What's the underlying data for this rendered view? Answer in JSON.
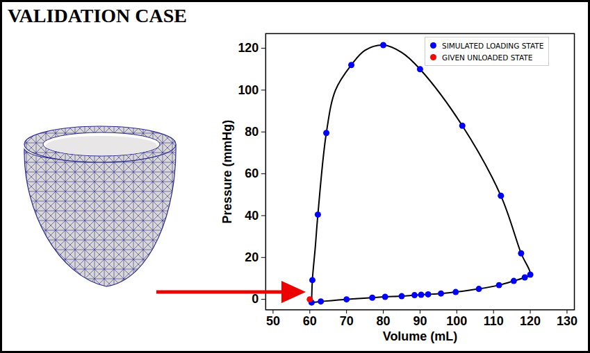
{
  "chart_data": {
    "type": "line",
    "title": "VALIDATION CASE",
    "x_label": "Volume (mL)",
    "y_label": "Pressure (mmHg)",
    "xlim": [
      48,
      132
    ],
    "ylim": [
      -5,
      127
    ],
    "xticks": [
      50,
      60,
      70,
      80,
      90,
      100,
      110,
      120,
      130
    ],
    "yticks": [
      0,
      20,
      40,
      60,
      80,
      100,
      120
    ],
    "grid": false,
    "legend": "upper right",
    "series": [
      {
        "type": "line",
        "color": "#000000",
        "line_style": "solid",
        "x": [
          60.5,
          63,
          70,
          77,
          80.5,
          85,
          88.5,
          90.3,
          92.2,
          95.7,
          99.7,
          106,
          111.5,
          115.5,
          118.5,
          120,
          117.5,
          112,
          101.5,
          90,
          85,
          80,
          75,
          71.3,
          67,
          64.5,
          62.2,
          61.5,
          60.7,
          60.5
        ],
        "values": [
          -1.5,
          -1,
          0,
          0.8,
          1.2,
          1.5,
          2,
          2.2,
          2.4,
          2.8,
          3.5,
          5,
          6.8,
          8.8,
          10.5,
          11.8,
          22,
          49.5,
          83,
          110,
          118,
          121.5,
          119,
          112,
          100,
          79.5,
          40.5,
          25,
          9.2,
          -1.5
        ]
      },
      {
        "name": "SIMULATED LOADING STATE",
        "type": "scatter",
        "color": "#0000ff",
        "marker": "circle",
        "x": [
          60.5,
          63,
          70,
          77,
          80.5,
          85,
          88.5,
          90.3,
          92.2,
          95.7,
          99.7,
          106,
          111.5,
          115.5,
          118.5,
          120,
          117.5,
          112,
          101.5,
          90,
          80,
          71.3,
          64.5,
          62.2,
          60.7
        ],
        "values": [
          -1.5,
          -1,
          0,
          0.8,
          1.2,
          1.5,
          2,
          2.2,
          2.4,
          2.8,
          3.5,
          5,
          6.8,
          8.8,
          10.5,
          11.8,
          22,
          49.5,
          83,
          110,
          121.5,
          112,
          79.5,
          40.5,
          9.2
        ]
      },
      {
        "name": "GIVEN UNLOADED STATE",
        "type": "scatter",
        "color": "#ff0000",
        "marker": "circle",
        "x": [
          60
        ],
        "values": [
          0
        ]
      }
    ]
  }
}
